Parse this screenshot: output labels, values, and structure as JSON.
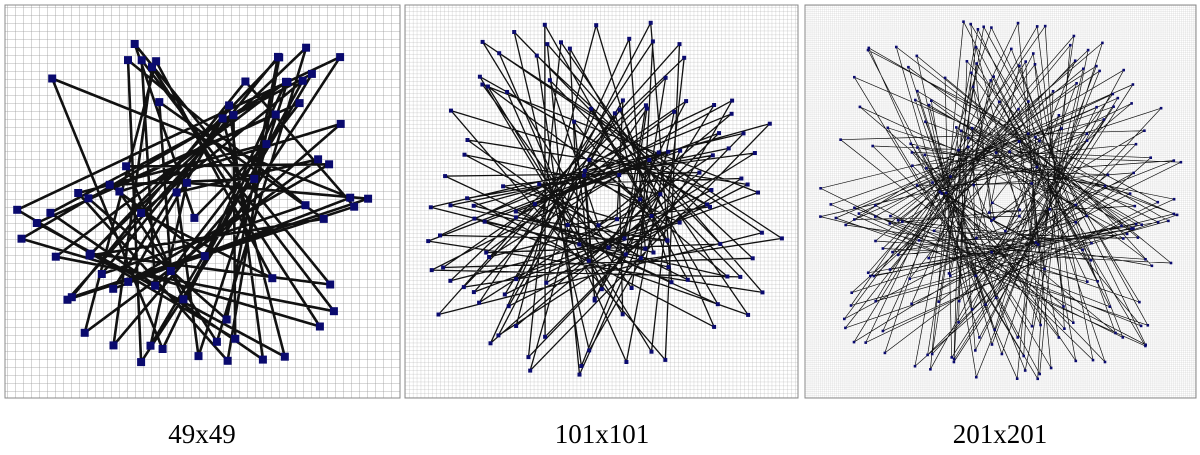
{
  "panels": [
    {
      "label": "49x49"
    },
    {
      "label": "101x101"
    },
    {
      "label": "201x201"
    }
  ]
}
